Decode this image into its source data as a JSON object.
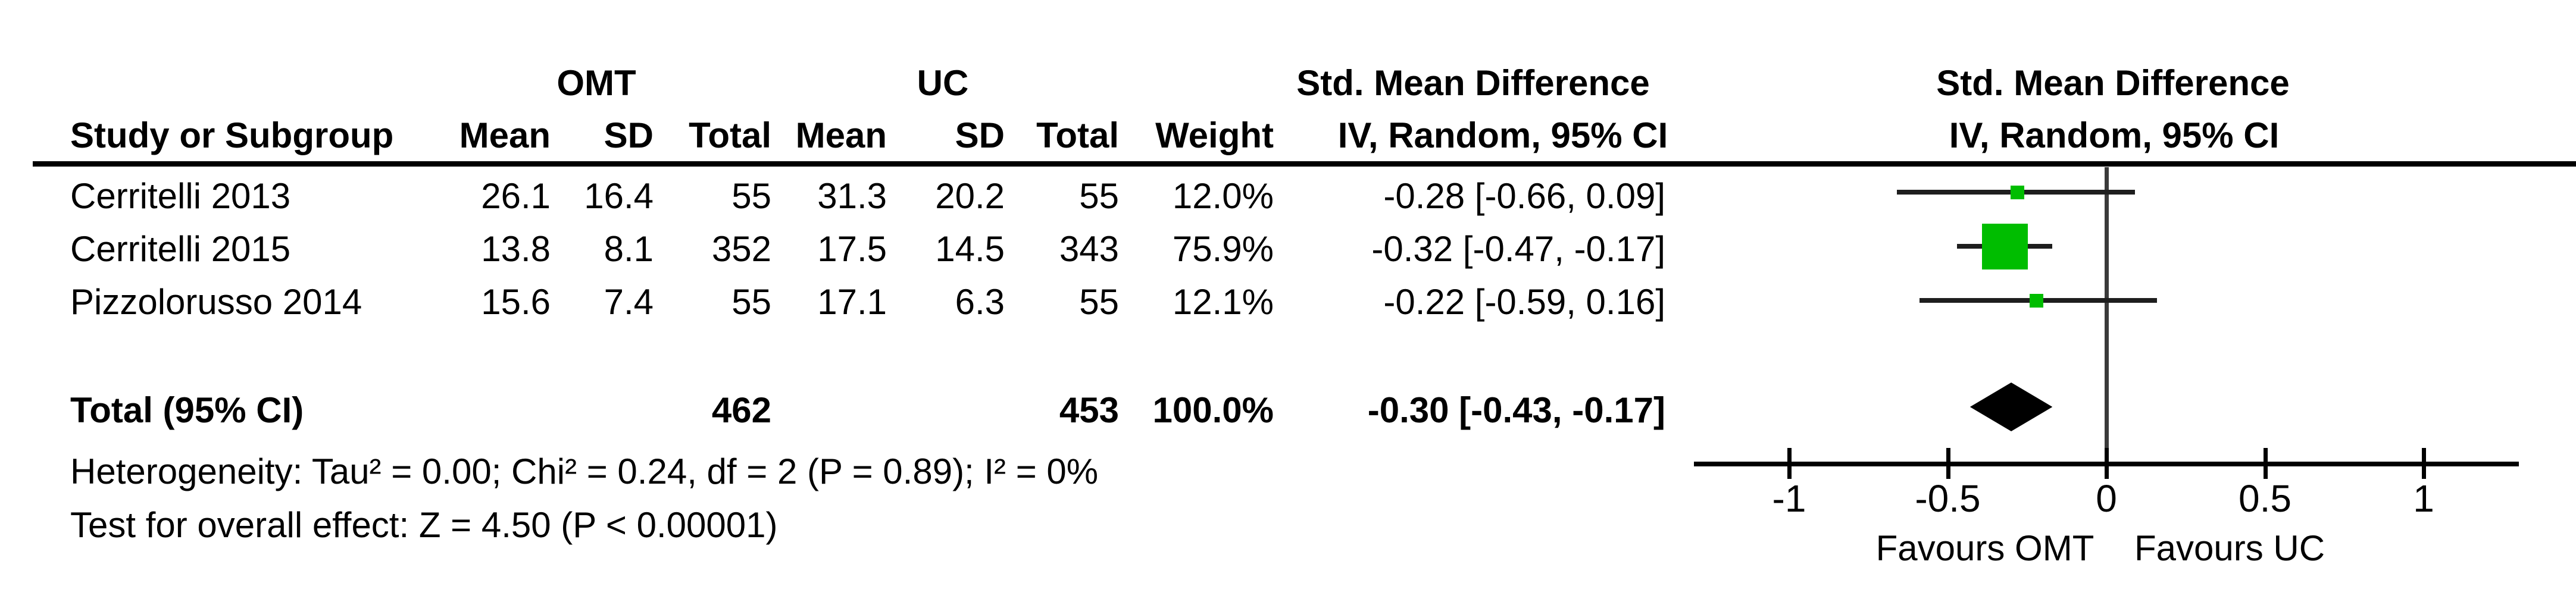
{
  "header": {
    "group_omt": "OMT",
    "group_uc": "UC",
    "smd_table": "Std. Mean Difference",
    "smd_plot": "Std. Mean Difference",
    "study": "Study or Subgroup",
    "mean": "Mean",
    "sd": "SD",
    "total": "Total",
    "weight": "Weight",
    "ci_table": "IV, Random, 95% CI",
    "ci_plot": "IV, Random, 95% CI"
  },
  "table": {
    "rows": [
      {
        "study": "Cerritelli 2013",
        "mean1": "26.1",
        "sd1": "16.4",
        "total1": "55",
        "mean2": "31.3",
        "sd2": "20.2",
        "total2": "55",
        "weight": "12.0%",
        "ci": "-0.28 [-0.66, 0.09]"
      },
      {
        "study": "Cerritelli 2015",
        "mean1": "13.8",
        "sd1": "8.1",
        "total1": "352",
        "mean2": "17.5",
        "sd2": "14.5",
        "total2": "343",
        "weight": "75.9%",
        "ci": "-0.32 [-0.47, -0.17]"
      },
      {
        "study": "Pizzolorusso 2014",
        "mean1": "15.6",
        "sd1": "7.4",
        "total1": "55",
        "mean2": "17.1",
        "sd2": "6.3",
        "total2": "55",
        "weight": "12.1%",
        "ci": "-0.22 [-0.59, 0.16]"
      }
    ],
    "total_row": {
      "label": "Total (95% CI)",
      "total1": "462",
      "total2": "453",
      "weight": "100.0%",
      "ci": "-0.30 [-0.43, -0.17]"
    }
  },
  "footnotes": {
    "heterogeneity": "Heterogeneity: Tau² = 0.00; Chi² = 0.24, df = 2 (P = 0.89); I² = 0%",
    "overall_effect": "Test for overall effect: Z = 4.50 (P < 0.00001)"
  },
  "chart_data": {
    "type": "forest",
    "effect_measure": "Std. Mean Difference",
    "method": "IV, Random, 95% CI",
    "studies": [
      {
        "name": "Cerritelli 2013",
        "omt_mean": 26.1,
        "omt_sd": 16.4,
        "omt_total": 55,
        "uc_mean": 31.3,
        "uc_sd": 20.2,
        "uc_total": 55,
        "weight_pct": 12.0,
        "smd": -0.28,
        "ci_low": -0.66,
        "ci_high": 0.09
      },
      {
        "name": "Cerritelli 2015",
        "omt_mean": 13.8,
        "omt_sd": 8.1,
        "omt_total": 352,
        "uc_mean": 17.5,
        "uc_sd": 14.5,
        "uc_total": 343,
        "weight_pct": 75.9,
        "smd": -0.32,
        "ci_low": -0.47,
        "ci_high": -0.17
      },
      {
        "name": "Pizzolorusso 2014",
        "omt_mean": 15.6,
        "omt_sd": 7.4,
        "omt_total": 55,
        "uc_mean": 17.1,
        "uc_sd": 6.3,
        "uc_total": 55,
        "weight_pct": 12.1,
        "smd": -0.22,
        "ci_low": -0.59,
        "ci_high": 0.16
      }
    ],
    "total": {
      "label": "Total (95% CI)",
      "omt_total": 462,
      "uc_total": 453,
      "weight_pct": 100.0,
      "smd": -0.3,
      "ci_low": -0.43,
      "ci_high": -0.17
    },
    "axis": {
      "tick_values": [
        -1,
        -0.5,
        0,
        0.5,
        1
      ],
      "tick_labels": [
        "-1",
        "-0.5",
        "0",
        "0.5",
        "1"
      ],
      "range": [
        -1.3,
        1.3
      ],
      "favours_left": "Favours OMT",
      "favours_right": "Favours UC"
    },
    "heterogeneity": {
      "tau2": 0.0,
      "chi2": 0.24,
      "df": 2,
      "p": 0.89,
      "i2_pct": 0
    },
    "overall_effect": {
      "z": 4.5,
      "p": "< 0.00001"
    },
    "marker_color": "#00bd00",
    "line_color": "#1e1e1e"
  }
}
